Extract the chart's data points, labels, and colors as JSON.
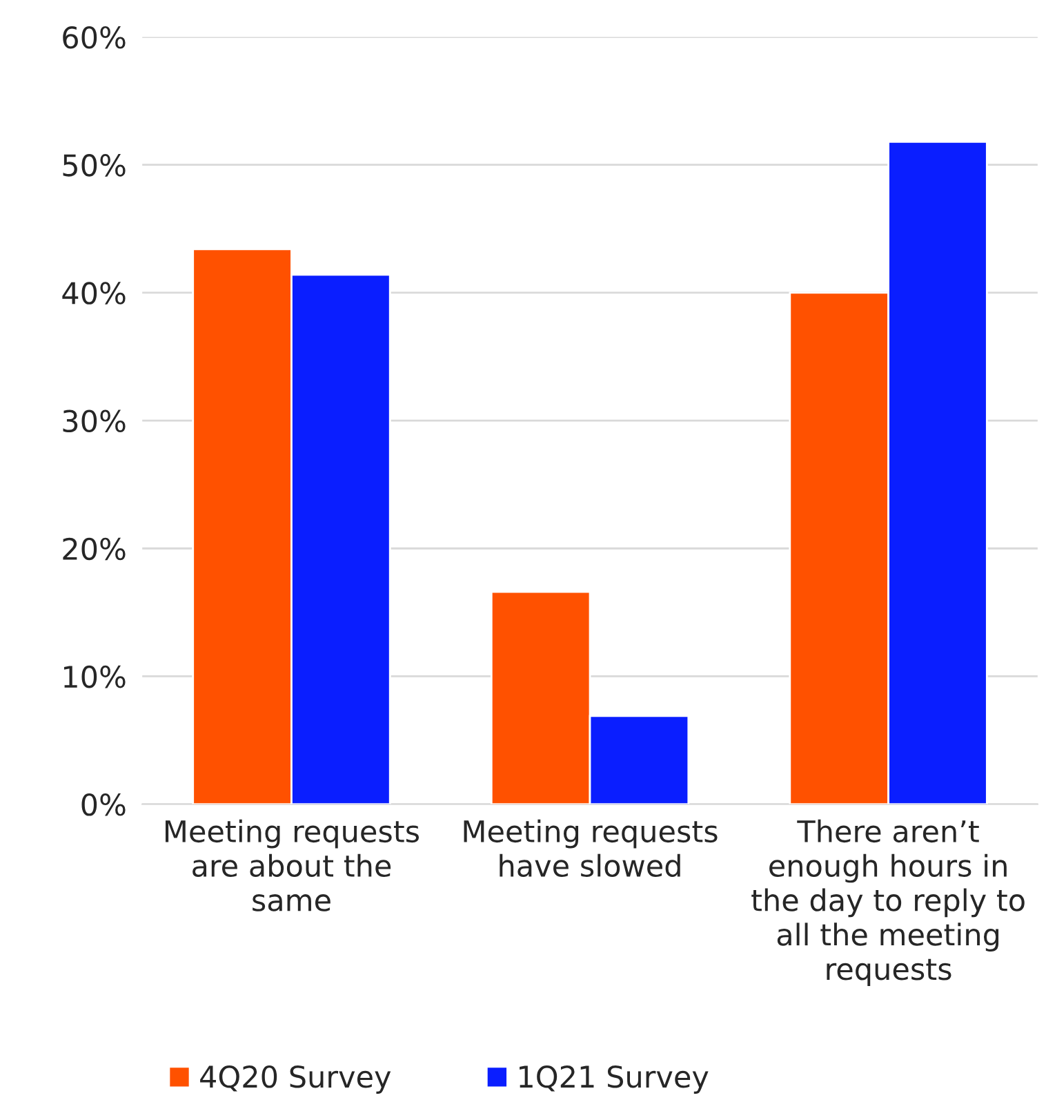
{
  "chart_data": {
    "type": "bar",
    "categories": [
      "Meeting requests\nare about the\nsame",
      "Meeting requests\nhave slowed",
      "There aren’t\nenough hours in\nthe day to reply to\nall the meeting\nrequests"
    ],
    "series": [
      {
        "name": "4Q20 Survey",
        "color": "#ff5100",
        "values": [
          43.4,
          16.6,
          40.0
        ]
      },
      {
        "name": "1Q21 Survey",
        "color": "#0a1eff",
        "values": [
          41.4,
          6.9,
          51.8
        ]
      }
    ],
    "ylim": [
      0,
      60
    ],
    "yticks": [
      {
        "value": 0,
        "label": "0%"
      },
      {
        "value": 10,
        "label": "10%"
      },
      {
        "value": 20,
        "label": "20%"
      },
      {
        "value": 30,
        "label": "30%"
      },
      {
        "value": 40,
        "label": "40%"
      },
      {
        "value": 50,
        "label": "50%"
      },
      {
        "value": 60,
        "label": "60%"
      }
    ],
    "grid": "y",
    "legend": "bottom left"
  }
}
